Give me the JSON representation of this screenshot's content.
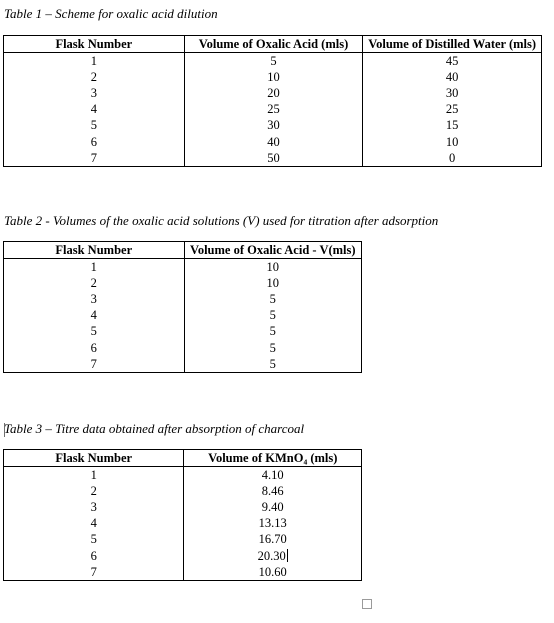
{
  "table1": {
    "caption": "Table 1 – Scheme for oxalic acid dilution",
    "headers": [
      "Flask Number",
      "Volume of Oxalic Acid (mls)",
      "Volume of Distilled Water (mls)"
    ],
    "rows": [
      [
        "1",
        "5",
        "45"
      ],
      [
        "2",
        "10",
        "40"
      ],
      [
        "3",
        "20",
        "30"
      ],
      [
        "4",
        "25",
        "25"
      ],
      [
        "5",
        "30",
        "15"
      ],
      [
        "6",
        "40",
        "10"
      ],
      [
        "7",
        "50",
        "0"
      ]
    ]
  },
  "table2": {
    "caption": "Table 2 - Volumes of the oxalic acid solutions (V) used for titration after adsorption",
    "headers": [
      "Flask Number",
      "Volume of Oxalic Acid - V(mls)"
    ],
    "rows": [
      [
        "1",
        "10"
      ],
      [
        "2",
        "10"
      ],
      [
        "3",
        "5"
      ],
      [
        "4",
        "5"
      ],
      [
        "5",
        "5"
      ],
      [
        "6",
        "5"
      ],
      [
        "7",
        "5"
      ]
    ]
  },
  "table3": {
    "caption": "Table 3 – Titre data obtained after absorption of charcoal",
    "headers": [
      "Flask Number",
      "Volume of KMnO₄ (mls)"
    ],
    "rows": [
      [
        "1",
        "4.10"
      ],
      [
        "2",
        "8.46"
      ],
      [
        "3",
        "9.40"
      ],
      [
        "4",
        "13.13"
      ],
      [
        "5",
        "16.70"
      ],
      [
        "6",
        "20.30"
      ],
      [
        "7",
        "10.60"
      ]
    ]
  }
}
